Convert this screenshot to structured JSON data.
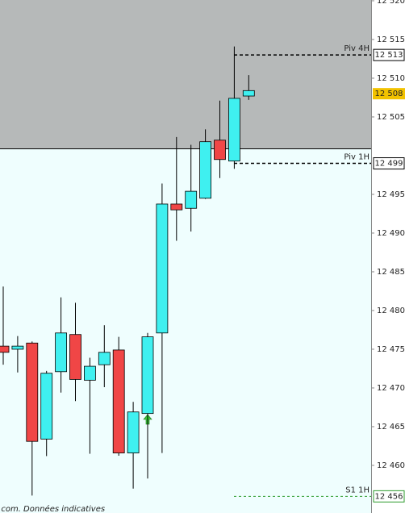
{
  "chart_data": {
    "type": "candlestick",
    "open": [
      12475.4,
      12475.0,
      12475.8,
      12463.4,
      12472.1,
      12476.9,
      12471.0,
      12473.0,
      12474.9,
      12461.6,
      12466.7,
      12477.1,
      12493.75,
      12493.2,
      12494.5,
      12502.0,
      12499.3,
      12507.7
    ],
    "high": [
      12483.1,
      12476.7,
      12476.0,
      12472.2,
      12481.7,
      12481.0,
      12473.9,
      12478.1,
      12476.6,
      12468.2,
      12477.1,
      12496.4,
      12502.4,
      12501.4,
      12503.4,
      12507.1,
      12514.1,
      12510.4
    ],
    "low": [
      12473.0,
      12472.0,
      12456.1,
      12461.2,
      12469.4,
      12468.3,
      12461.5,
      12470.1,
      12461.25,
      12457.0,
      12458.3,
      12461.6,
      12489.0,
      12490.2,
      12494.4,
      12497.1,
      12498.3,
      12507.2
    ],
    "close": [
      12474.6,
      12475.4,
      12463.1,
      12471.9,
      12477.1,
      12471.1,
      12472.8,
      12474.6,
      12461.6,
      12466.9,
      12476.6,
      12493.75,
      12493.0,
      12495.4,
      12501.8,
      12499.5,
      12507.4,
      12508.4
    ],
    "up_color": "#3ff0f0",
    "down_color": "#f04646",
    "ylim": [
      12453.85,
      12520.1
    ],
    "yticks": [
      {
        "value": 12460,
        "label": "12 460"
      },
      {
        "value": 12465,
        "label": "12 465"
      },
      {
        "value": 12470,
        "label": "12 470"
      },
      {
        "value": 12475,
        "label": "12 475"
      },
      {
        "value": 12480,
        "label": "12 480"
      },
      {
        "value": 12485,
        "label": "12 485"
      },
      {
        "value": 12490,
        "label": "12 490"
      },
      {
        "value": 12495,
        "label": "12 495"
      },
      {
        "value": 12505,
        "label": "12 505"
      },
      {
        "value": 12510,
        "label": "12 510"
      },
      {
        "value": 12515,
        "label": "12 515"
      },
      {
        "value": 12520,
        "label": "12 520"
      }
    ],
    "levels": [
      {
        "label": "Piv 4H",
        "value": 12513,
        "value_label": "12 513",
        "color": "#000000"
      },
      {
        "label": "Piv 1H",
        "value": 12499,
        "value_label": "12 499",
        "color": "#000000"
      },
      {
        "label": "S1 1H",
        "value": 12456,
        "value_label": "12 456",
        "color": "#2a9a2a"
      }
    ],
    "last": {
      "value": 12508,
      "label": "12 508",
      "color": "#f2c200"
    },
    "footer": "e.com. Données indicatives"
  }
}
